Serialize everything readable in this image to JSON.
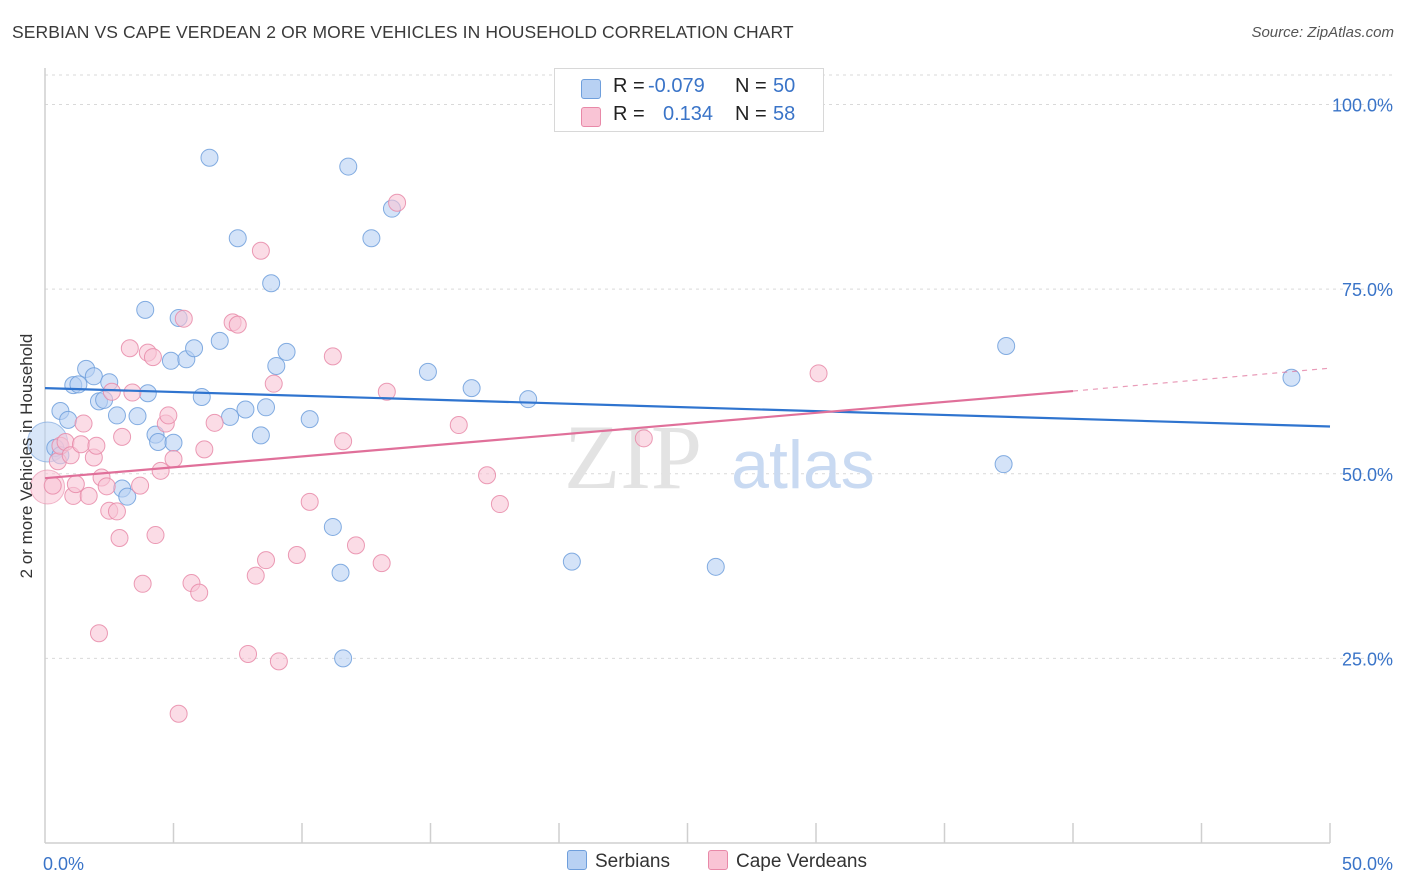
{
  "title": "SERBIAN VS CAPE VERDEAN 2 OR MORE VEHICLES IN HOUSEHOLD CORRELATION CHART",
  "source": "Source: ZipAtlas.com",
  "watermark": {
    "zip": "ZIP",
    "atlas": "atlas"
  },
  "legend": {
    "rows": [
      {
        "r_label": "R =",
        "r_value": "-0.079",
        "n_label": "N =",
        "n_value": "50"
      },
      {
        "r_label": "R =",
        "r_value": "0.134",
        "n_label": "N =",
        "n_value": "58"
      }
    ]
  },
  "bottom_legend": {
    "serbians": "Serbians",
    "cape_verdeans": "Cape Verdeans"
  },
  "colors": {
    "serbian_fill": "#b8d1f3",
    "serbian_stroke": "#6f9fdc",
    "serbian_line": "#2f74cf",
    "cv_fill": "#f9c4d5",
    "cv_stroke": "#e889a8",
    "cv_line": "#e0709a",
    "tick_label": "#3a74c8",
    "grid": "#d9d9d9"
  },
  "chart_data": {
    "type": "scatter",
    "title": "SERBIAN VS CAPE VERDEAN 2 OR MORE VEHICLES IN HOUSEHOLD CORRELATION CHART",
    "xlabel": "",
    "ylabel": "2 or more Vehicles in Household",
    "xlim": [
      0,
      50
    ],
    "ylim": [
      0,
      104
    ],
    "x_tick_labels": [
      "0.0%",
      "50.0%"
    ],
    "y_ticks": [
      25,
      50,
      75,
      100
    ],
    "y_tick_labels": [
      "25.0%",
      "50.0%",
      "75.0%",
      "100.0%"
    ],
    "grid": "horizontal dashed",
    "legend_position": "top-center",
    "series": [
      {
        "name": "Serbians",
        "points": [
          [
            0.4,
            53.5
          ],
          [
            0.6,
            52.5
          ],
          [
            0.6,
            58.5
          ],
          [
            0.9,
            57.3
          ],
          [
            1.1,
            62.0
          ],
          [
            1.3,
            62.1
          ],
          [
            1.6,
            64.2
          ],
          [
            1.9,
            63.2
          ],
          [
            2.1,
            59.8
          ],
          [
            2.3,
            60.0
          ],
          [
            2.5,
            62.4
          ],
          [
            2.8,
            57.9
          ],
          [
            3.0,
            48.0
          ],
          [
            3.2,
            46.9
          ],
          [
            3.6,
            57.8
          ],
          [
            3.9,
            72.2
          ],
          [
            4.0,
            60.9
          ],
          [
            4.3,
            55.3
          ],
          [
            4.4,
            54.3
          ],
          [
            4.9,
            65.3
          ],
          [
            5.0,
            54.2
          ],
          [
            5.2,
            71.1
          ],
          [
            5.5,
            65.5
          ],
          [
            5.8,
            67.0
          ],
          [
            6.1,
            60.4
          ],
          [
            6.4,
            92.8
          ],
          [
            6.8,
            68.0
          ],
          [
            7.2,
            57.7
          ],
          [
            7.5,
            81.9
          ],
          [
            7.8,
            58.7
          ],
          [
            8.4,
            55.2
          ],
          [
            8.6,
            59.0
          ],
          [
            8.8,
            75.8
          ],
          [
            9.0,
            64.6
          ],
          [
            9.4,
            66.5
          ],
          [
            10.3,
            57.4
          ],
          [
            11.2,
            42.8
          ],
          [
            11.5,
            36.6
          ],
          [
            11.6,
            25.0
          ],
          [
            11.8,
            91.6
          ],
          [
            12.7,
            81.9
          ],
          [
            13.5,
            85.9
          ],
          [
            14.9,
            63.8
          ],
          [
            16.6,
            61.6
          ],
          [
            18.8,
            60.1
          ],
          [
            20.5,
            38.1
          ],
          [
            26.1,
            37.4
          ],
          [
            37.3,
            51.3
          ],
          [
            37.4,
            67.3
          ],
          [
            48.5,
            63.0
          ]
        ],
        "trend": {
          "x": [
            0,
            50
          ],
          "y": [
            61.6,
            56.4
          ]
        }
      },
      {
        "name": "Cape Verdeans",
        "points": [
          [
            0.3,
            48.4
          ],
          [
            0.5,
            51.7
          ],
          [
            0.6,
            53.8
          ],
          [
            0.8,
            54.3
          ],
          [
            1.0,
            52.5
          ],
          [
            1.1,
            47.0
          ],
          [
            1.2,
            48.6
          ],
          [
            1.4,
            54.0
          ],
          [
            1.5,
            56.8
          ],
          [
            1.7,
            47.0
          ],
          [
            1.9,
            52.2
          ],
          [
            2.0,
            53.8
          ],
          [
            2.1,
            28.4
          ],
          [
            2.2,
            49.5
          ],
          [
            2.4,
            48.3
          ],
          [
            2.5,
            45.0
          ],
          [
            2.6,
            61.1
          ],
          [
            2.8,
            44.9
          ],
          [
            2.9,
            41.3
          ],
          [
            3.0,
            55.0
          ],
          [
            3.3,
            67.0
          ],
          [
            3.4,
            61.0
          ],
          [
            3.7,
            48.4
          ],
          [
            3.8,
            35.1
          ],
          [
            4.0,
            66.4
          ],
          [
            4.2,
            65.8
          ],
          [
            4.3,
            41.7
          ],
          [
            4.5,
            50.4
          ],
          [
            4.7,
            56.8
          ],
          [
            4.8,
            57.9
          ],
          [
            5.0,
            52.0
          ],
          [
            5.2,
            17.5
          ],
          [
            5.4,
            71.0
          ],
          [
            5.7,
            35.2
          ],
          [
            6.0,
            33.9
          ],
          [
            6.2,
            53.3
          ],
          [
            6.6,
            56.9
          ],
          [
            7.3,
            70.5
          ],
          [
            7.5,
            70.2
          ],
          [
            7.9,
            25.6
          ],
          [
            8.2,
            36.2
          ],
          [
            8.4,
            80.2
          ],
          [
            8.6,
            38.3
          ],
          [
            8.9,
            62.2
          ],
          [
            9.1,
            24.6
          ],
          [
            9.8,
            39.0
          ],
          [
            10.3,
            46.2
          ],
          [
            11.2,
            65.9
          ],
          [
            11.6,
            54.4
          ],
          [
            12.1,
            40.3
          ],
          [
            13.1,
            37.9
          ],
          [
            13.3,
            61.1
          ],
          [
            13.7,
            86.7
          ],
          [
            16.1,
            56.6
          ],
          [
            17.2,
            49.8
          ],
          [
            17.7,
            45.9
          ],
          [
            23.3,
            54.8
          ],
          [
            30.1,
            63.6
          ]
        ],
        "trend": {
          "x": [
            0,
            40
          ],
          "y": [
            49.4,
            61.2
          ]
        },
        "trend_dashed": {
          "x": [
            40,
            50
          ],
          "y": [
            61.2,
            64.3
          ]
        }
      }
    ]
  }
}
